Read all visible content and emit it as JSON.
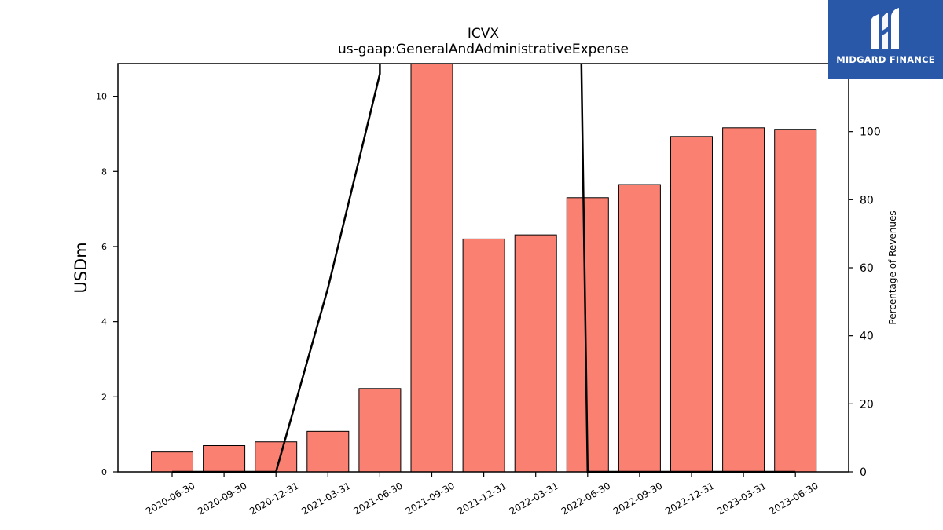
{
  "brand": {
    "name": "MIDGARD FINANCE",
    "logo_icon": "midgard-m-logo-icon",
    "bg_color": "#2a58a8"
  },
  "chart_data": {
    "type": "bar",
    "title": "ICVX",
    "subtitle": "us-gaap:GeneralAndAdministrativeExpense",
    "categories": [
      "2020-06-30",
      "2020-09-30",
      "2020-12-31",
      "2021-03-31",
      "2021-06-30",
      "2021-09-30",
      "2021-12-31",
      "2022-03-31",
      "2022-06-30",
      "2022-09-30",
      "2022-12-31",
      "2023-03-31",
      "2023-06-30"
    ],
    "series": [
      {
        "type": "bar",
        "axis": "left",
        "color": "#fa8072",
        "values": [
          0.53,
          0.7,
          0.8,
          1.08,
          2.22,
          10.9,
          6.2,
          6.31,
          7.3,
          7.65,
          8.93,
          9.16,
          9.12
        ]
      },
      {
        "type": "line",
        "axis": "right",
        "color": "#000000",
        "values": [
          0,
          0,
          0,
          54,
          117,
          null,
          null,
          null,
          0,
          0,
          0,
          0,
          0
        ]
      }
    ],
    "ylabel": "USDm",
    "ylabel_right": "Percentage of Revenues",
    "ylim": [
      0,
      10.87
    ],
    "ylim_right": [
      0,
      120
    ],
    "yticks": [
      0,
      2,
      4,
      6,
      8,
      10
    ],
    "yticks_right": [
      0,
      20,
      40,
      60,
      80,
      100
    ],
    "grid": false
  }
}
